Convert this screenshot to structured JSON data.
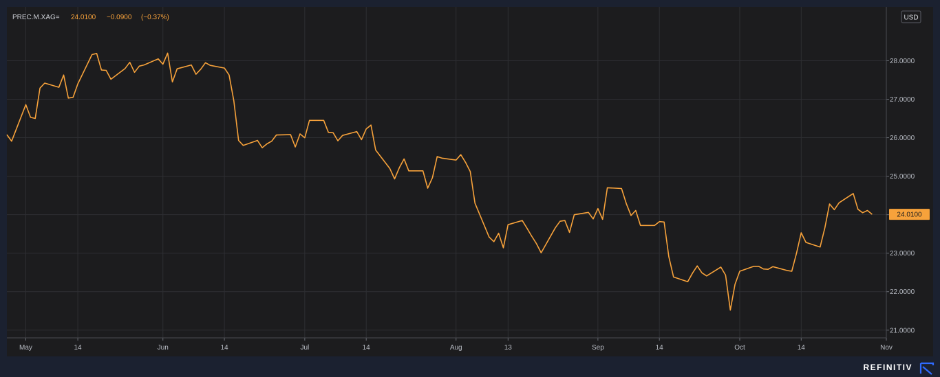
{
  "header": {
    "symbol": "PREC.M.XAG=",
    "last": "24.0100",
    "change": "−0.0900",
    "change_pct": "(−0.37%)"
  },
  "currency": "USD",
  "current_price_label": "24.0100",
  "brand": "REFINITIV",
  "colors": {
    "line": "#f7a23b",
    "background": "#1c1c1e",
    "grid": "#2e2f33",
    "price_tag": "#f7a23b"
  },
  "chart_data": {
    "type": "line",
    "title": "",
    "xlabel": "",
    "ylabel": "",
    "ylim": [
      20.8,
      29.4
    ],
    "y_ticks": [
      21,
      22,
      23,
      24,
      25,
      26,
      27,
      28
    ],
    "y_tick_labels": [
      "21.0000",
      "22.0000",
      "23.0000",
      "24.0000",
      "25.0000",
      "26.0000",
      "27.0000",
      "28.0000"
    ],
    "x_range": [
      "2021-04-29",
      "2021-11-01"
    ],
    "x_ticks": [
      {
        "date": "2021-05-03",
        "label": "May"
      },
      {
        "date": "2021-05-14",
        "label": "14"
      },
      {
        "date": "2021-06-01",
        "label": "Jun"
      },
      {
        "date": "2021-06-14",
        "label": "14"
      },
      {
        "date": "2021-07-01",
        "label": "Jul"
      },
      {
        "date": "2021-07-14",
        "label": "14"
      },
      {
        "date": "2021-08-02",
        "label": "Aug"
      },
      {
        "date": "2021-08-13",
        "label": "13"
      },
      {
        "date": "2021-09-01",
        "label": "Sep"
      },
      {
        "date": "2021-09-14",
        "label": "14"
      },
      {
        "date": "2021-10-01",
        "label": "Oct"
      },
      {
        "date": "2021-10-14",
        "label": "14"
      },
      {
        "date": "2021-11-01",
        "label": "Nov"
      }
    ],
    "grid": true,
    "series": [
      {
        "points": [
          [
            "2021-04-29",
            26.08
          ],
          [
            "2021-04-30",
            25.91
          ],
          [
            "2021-05-03",
            26.86
          ],
          [
            "2021-05-04",
            26.53
          ],
          [
            "2021-05-05",
            26.5
          ],
          [
            "2021-05-06",
            27.29
          ],
          [
            "2021-05-07",
            27.42
          ],
          [
            "2021-05-10",
            27.31
          ],
          [
            "2021-05-11",
            27.63
          ],
          [
            "2021-05-12",
            27.03
          ],
          [
            "2021-05-13",
            27.05
          ],
          [
            "2021-05-14",
            27.4
          ],
          [
            "2021-05-17",
            28.16
          ],
          [
            "2021-05-18",
            28.19
          ],
          [
            "2021-05-19",
            27.76
          ],
          [
            "2021-05-20",
            27.75
          ],
          [
            "2021-05-21",
            27.52
          ],
          [
            "2021-05-24",
            27.8
          ],
          [
            "2021-05-25",
            27.96
          ],
          [
            "2021-05-26",
            27.7
          ],
          [
            "2021-05-27",
            27.86
          ],
          [
            "2021-05-28",
            27.89
          ],
          [
            "2021-05-31",
            28.05
          ],
          [
            "2021-06-01",
            27.91
          ],
          [
            "2021-06-02",
            28.2
          ],
          [
            "2021-06-03",
            27.45
          ],
          [
            "2021-06-04",
            27.79
          ],
          [
            "2021-06-07",
            27.89
          ],
          [
            "2021-06-08",
            27.65
          ],
          [
            "2021-06-09",
            27.78
          ],
          [
            "2021-06-10",
            27.95
          ],
          [
            "2021-06-11",
            27.88
          ],
          [
            "2021-06-14",
            27.81
          ],
          [
            "2021-06-15",
            27.63
          ],
          [
            "2021-06-16",
            26.96
          ],
          [
            "2021-06-17",
            25.93
          ],
          [
            "2021-06-18",
            25.8
          ],
          [
            "2021-06-21",
            25.93
          ],
          [
            "2021-06-22",
            25.74
          ],
          [
            "2021-06-23",
            25.84
          ],
          [
            "2021-06-24",
            25.91
          ],
          [
            "2021-06-25",
            26.07
          ],
          [
            "2021-06-28",
            26.08
          ],
          [
            "2021-06-29",
            25.76
          ],
          [
            "2021-06-30",
            26.1
          ],
          [
            "2021-07-01",
            26.0
          ],
          [
            "2021-07-02",
            26.45
          ],
          [
            "2021-07-05",
            26.45
          ],
          [
            "2021-07-06",
            26.14
          ],
          [
            "2021-07-07",
            26.13
          ],
          [
            "2021-07-08",
            25.92
          ],
          [
            "2021-07-09",
            26.06
          ],
          [
            "2021-07-12",
            26.16
          ],
          [
            "2021-07-13",
            25.95
          ],
          [
            "2021-07-14",
            26.23
          ],
          [
            "2021-07-15",
            26.33
          ],
          [
            "2021-07-16",
            25.68
          ],
          [
            "2021-07-19",
            25.2
          ],
          [
            "2021-07-20",
            24.93
          ],
          [
            "2021-07-21",
            25.22
          ],
          [
            "2021-07-22",
            25.45
          ],
          [
            "2021-07-23",
            25.14
          ],
          [
            "2021-07-26",
            25.14
          ],
          [
            "2021-07-27",
            24.69
          ],
          [
            "2021-07-28",
            24.96
          ],
          [
            "2021-07-29",
            25.51
          ],
          [
            "2021-07-30",
            25.47
          ],
          [
            "2021-08-02",
            25.42
          ],
          [
            "2021-08-03",
            25.56
          ],
          [
            "2021-08-04",
            25.36
          ],
          [
            "2021-08-05",
            25.12
          ],
          [
            "2021-08-06",
            24.3
          ],
          [
            "2021-08-09",
            23.42
          ],
          [
            "2021-08-10",
            23.3
          ],
          [
            "2021-08-11",
            23.52
          ],
          [
            "2021-08-12",
            23.14
          ],
          [
            "2021-08-13",
            23.74
          ],
          [
            "2021-08-16",
            23.85
          ],
          [
            "2021-08-17",
            23.65
          ],
          [
            "2021-08-18",
            23.44
          ],
          [
            "2021-08-19",
            23.25
          ],
          [
            "2021-08-20",
            23.01
          ],
          [
            "2021-08-23",
            23.66
          ],
          [
            "2021-08-24",
            23.83
          ],
          [
            "2021-08-25",
            23.85
          ],
          [
            "2021-08-26",
            23.54
          ],
          [
            "2021-08-27",
            24.0
          ],
          [
            "2021-08-30",
            24.06
          ],
          [
            "2021-08-31",
            23.89
          ],
          [
            "2021-09-01",
            24.16
          ],
          [
            "2021-09-02",
            23.88
          ],
          [
            "2021-09-03",
            24.7
          ],
          [
            "2021-09-06",
            24.68
          ],
          [
            "2021-09-07",
            24.29
          ],
          [
            "2021-09-08",
            23.98
          ],
          [
            "2021-09-09",
            24.11
          ],
          [
            "2021-09-10",
            23.72
          ],
          [
            "2021-09-13",
            23.72
          ],
          [
            "2021-09-14",
            23.82
          ],
          [
            "2021-09-15",
            23.81
          ],
          [
            "2021-09-16",
            22.91
          ],
          [
            "2021-09-17",
            22.38
          ],
          [
            "2021-09-20",
            22.26
          ],
          [
            "2021-09-21",
            22.48
          ],
          [
            "2021-09-22",
            22.67
          ],
          [
            "2021-09-23",
            22.49
          ],
          [
            "2021-09-24",
            22.41
          ],
          [
            "2021-09-27",
            22.64
          ],
          [
            "2021-09-28",
            22.43
          ],
          [
            "2021-09-29",
            21.52
          ],
          [
            "2021-09-30",
            22.19
          ],
          [
            "2021-10-01",
            22.53
          ],
          [
            "2021-10-04",
            22.66
          ],
          [
            "2021-10-05",
            22.66
          ],
          [
            "2021-10-06",
            22.59
          ],
          [
            "2021-10-07",
            22.58
          ],
          [
            "2021-10-08",
            22.65
          ],
          [
            "2021-10-11",
            22.55
          ],
          [
            "2021-10-12",
            22.53
          ],
          [
            "2021-10-13",
            23.0
          ],
          [
            "2021-10-14",
            23.53
          ],
          [
            "2021-10-15",
            23.28
          ],
          [
            "2021-10-18",
            23.16
          ],
          [
            "2021-10-19",
            23.66
          ],
          [
            "2021-10-20",
            24.28
          ],
          [
            "2021-10-21",
            24.13
          ],
          [
            "2021-10-22",
            24.31
          ],
          [
            "2021-10-25",
            24.55
          ],
          [
            "2021-10-26",
            24.14
          ],
          [
            "2021-10-27",
            24.05
          ],
          [
            "2021-10-28",
            24.11
          ],
          [
            "2021-10-29",
            24.01
          ]
        ]
      }
    ]
  }
}
